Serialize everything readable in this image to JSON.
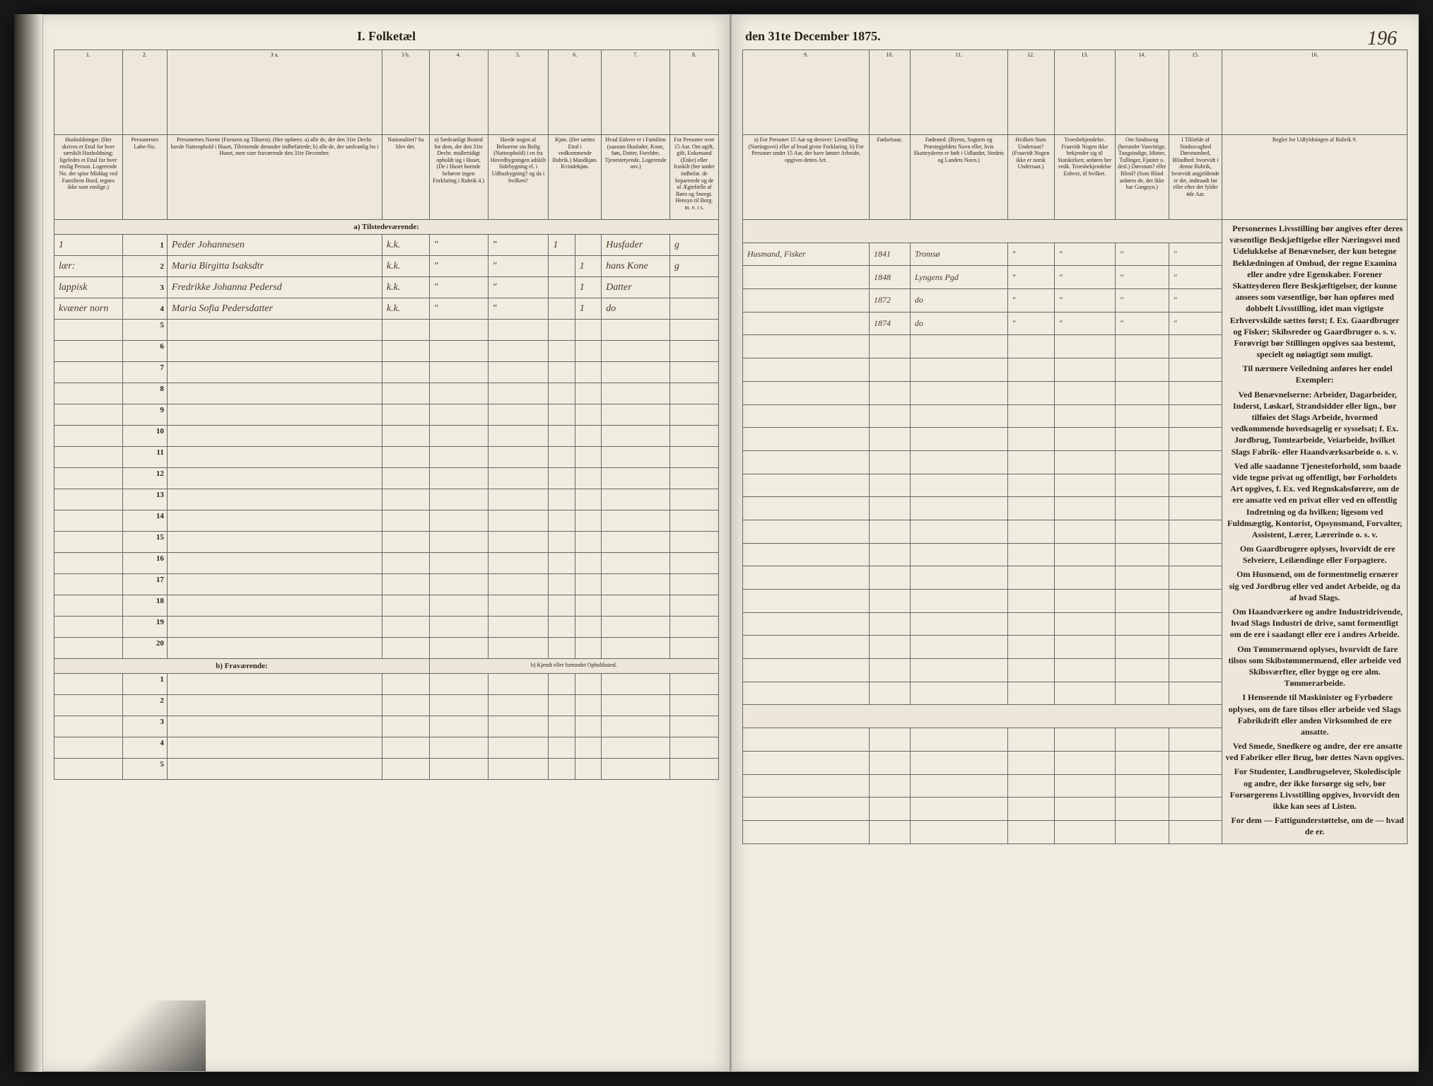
{
  "document": {
    "title_left": "I. Folketæl",
    "title_right": "den 31te December 1875.",
    "page_number": "196",
    "background_color": "#f0ece0",
    "border_color": "#666666",
    "text_color": "#2a2418",
    "handwriting_color": "#4a3828"
  },
  "left_columns": {
    "nums": [
      "1.",
      "2.",
      "3 a.",
      "3 b.",
      "4.",
      "5.",
      "6.",
      "7.",
      "8."
    ],
    "headers": [
      "Husholdninger. (Her skrives et Ettal for hver særskilt Husholdning; ligeledes et Ettal for hver enslig Person. Logerende No. der spise Middag ved Familiens Bord, regnes ikke som enslige.)",
      "Personernes Løbe-No.",
      "Personernes Navne (Fornavn og Tilnavn). (Her opføres: a) alle de, der den 31te Decbr. havde Natteophold i Huset, Tilreisende derunder indbefattede; b) alle de, der sædvanlig bo i Huset, men vare fraværende den 31te December.",
      "Nationalitet? Sa blev det.",
      "a) Sædvanligt Bosted for dem, der den 31te Decbr. midlertidigt opholdt sig i Huset, (De i Huset boende behøver ingen Forklaring i Rubrik 4.)",
      "Havde nogen af Beboerne sin Bolig (Natteophold) i en fra Hovedbygningen adskilt Sidebygning el. i Udhusbygning? og da i hvilken?",
      "Kjøn. (Her sættes Ettal i vedkommende Rubrik.) Mandkjøn. Kvindekjøn.",
      "Hvad Enhver er i Familien (saasom Husfader, Kone, Søn, Datter, Foreldre, Tjenestetyende, Logerende osv.)",
      "For Personer over 15 Aar. Om ugift, gift, Enkemand (Enke) eller fraskilt (her under indbefat. de Separerede og de af Ægtefælle af Børn og Sneegt. Hensyn til Borg. m. e. i s."
    ]
  },
  "right_columns": {
    "nums": [
      "9.",
      "10.",
      "11.",
      "12.",
      "13.",
      "14.",
      "15.",
      "16."
    ],
    "headers": [
      "a) For Personer 15 Aar og derover: Livstilling (Næringsvei) eller af hvad givne Forklaring. b) For Personer under 15 Aar, der have lønnet Arbeide, opgives dettes Art.",
      "Fødselsaar.",
      "Fødested. (Byens, Sognets og Præstegjeldets Navn eller, hvis Skatteyderen er født i Udlandet, Stedets og Landets Navn.)",
      "Hvilken Stats Undersaat? (Fraavidt Nogen ikke er norsk Undersaat.)",
      "Troesbekjendelse. Fraavidt Nogen ikke bekjender sig til Statskirken; anføres her vedk. Troesbekjendelse Enhver, til hvilket.",
      "Om Sindssvag (herunder Vanvittige, Tungsindige, Idioter, Tullinger, Fjanter o. desl.) Døvstum? eller Blind? (Som Blind anføres de, der ikke har Gangsyn.)",
      "I Tilfælde af Sindssvaghed Døvstumhed, Blindhed: hvorvidt i denne Rubrik, hvorvidt angjeldende er det, indtraadt før eller efter det fyldte 4de Aar.",
      "Regler for Udfyldningen af Rubrik 9."
    ]
  },
  "sections": {
    "present": "a) Tilstedeværende:",
    "absent": "b) Fraværende:",
    "absent_note": "b) Kjendt eller formodet Opholdssted."
  },
  "entries": [
    {
      "household": "1",
      "num": "1",
      "name": "Peder Johannesen",
      "nat": "k.k.",
      "col4": "\"",
      "col5": "\"",
      "sex_m": "1",
      "sex_f": "",
      "family": "Husfader",
      "marital": "g",
      "occupation": "Husmand, Fisker",
      "birth_year": "1841",
      "birthplace": "Tromsø",
      "col12": "\"",
      "col13": "\"",
      "col14": "\"",
      "col15": "\""
    },
    {
      "household": "lær:",
      "num": "2",
      "name": "Maria Birgitta Isaksdtr",
      "nat": "k.k.",
      "col4": "\"",
      "col5": "\"",
      "sex_m": "",
      "sex_f": "1",
      "family": "hans Kone",
      "marital": "g",
      "occupation": "",
      "birth_year": "1848",
      "birthplace": "Lyngens Pgd",
      "col12": "\"",
      "col13": "\"",
      "col14": "\"",
      "col15": "\""
    },
    {
      "household": "lappisk",
      "num": "3",
      "name": "Fredrikke Johanna Pedersd",
      "nat": "k.k.",
      "col4": "\"",
      "col5": "\"",
      "sex_m": "",
      "sex_f": "1",
      "family": "Datter",
      "marital": "",
      "occupation": "",
      "birth_year": "1872",
      "birthplace": "do",
      "col12": "\"",
      "col13": "\"",
      "col14": "\"",
      "col15": "\""
    },
    {
      "household": "kvæner norn",
      "num": "4",
      "name": "Maria Sofia Pedersdatter",
      "nat": "k.k.",
      "col4": "\"",
      "col5": "\"",
      "sex_m": "",
      "sex_f": "1",
      "family": "do",
      "marital": "",
      "occupation": "",
      "birth_year": "1874",
      "birthplace": "do",
      "col12": "\"",
      "col13": "\"",
      "col14": "\"",
      "col15": "\""
    }
  ],
  "empty_rows_present": [
    5,
    6,
    7,
    8,
    9,
    10,
    11,
    12,
    13,
    14,
    15,
    16,
    17,
    18,
    19,
    20
  ],
  "empty_rows_absent": [
    1,
    2,
    3,
    4,
    5
  ],
  "instructions_text": [
    "Personernes Livsstilling bør angives efter deres væsentlige Beskjæftigelse eller Næringsvei med Udelukkelse af Benævnelser, der kun betegne Beklædningen af Ombud, der regne Examina eller andre ydre Egenskaber. Forener Skatteyderen flere Beskjæftigelser, der kunne ansees som væsentlige, bør han opføres med dobbelt Livsstilling, idet man vigtigste Erhvervskilde sættes først; f. Ex. Gaardbruger og Fisker; Skibsreder og Gaardbruger o. s. v. Forøvrigt bør Stillingen opgives saa bestemt, specielt og nøiagtigt som muligt.",
    "Til nærmere Veiledning anføres her endel Exempler:",
    "Ved Benævnelserne: Arbeider, Dagarbeider, Inderst, Løskarl, Strandsidder eller lign., bør tilføies det Slags Arbeide, hvormed vedkommende hovedsagelig er sysselsat; f. Ex. Jordbrug, Tomtearbeide, Veiarbeide, hvilket Slags Fabrik- eller Haandværksarbeide o. s. v.",
    "Ved alle saadanne Tjenesteforhold, som baade vide tegne privat og offentligt, bør Forholdets Art opgives, f. Ex. ved Regnskabsførere, om de ere ansatte ved en privat eller ved en offentlig Indretning og da hvilken; ligesom ved Fuldmægtig, Kontorist, Opsynsmand, Forvalter, Assistent, Lærer, Lærerinde o. s. v.",
    "Om Gaardbrugere oplyses, hvorvidt de ere Selveiere, Leilændinge eller Forpagtere.",
    "Om Husmænd, om de formentmelig ernærer sig ved Jordbrug eller ved andet Arbeide, og da af hvad Slags.",
    "Om Haandværkere og andre Industridrivende, hvad Slags Industri de drive, samt formentligt om de ere i saadangt eller ere i andres Arbeide.",
    "Om Tømmermænd oplyses, hvorvidt de fare tilsos som Skibstømmermænd, eller arbeide ved Skibsværfter, eller bygge og ere alm. Tømmerarbeide.",
    "I Henseende til Maskinister og Fyrbødere oplyses, om de fare tilsos eller arbeide ved Slags Fabrikdrift eller anden Virksomhed de ere ansatte.",
    "Ved Smede, Snedkere og andre, der ere ansatte ved Fabriker eller Brug, bør dettes Navn opgives.",
    "For Studenter, Landbrugselever, Skoledisciple og andre, der ikke forsørge sig selv, bør Forsørgerens Livsstilling opgives, hvorvidt den ikke kan sees af Listen.",
    "For dem — Fattigunderstøttelse, om de — hvad de er."
  ]
}
